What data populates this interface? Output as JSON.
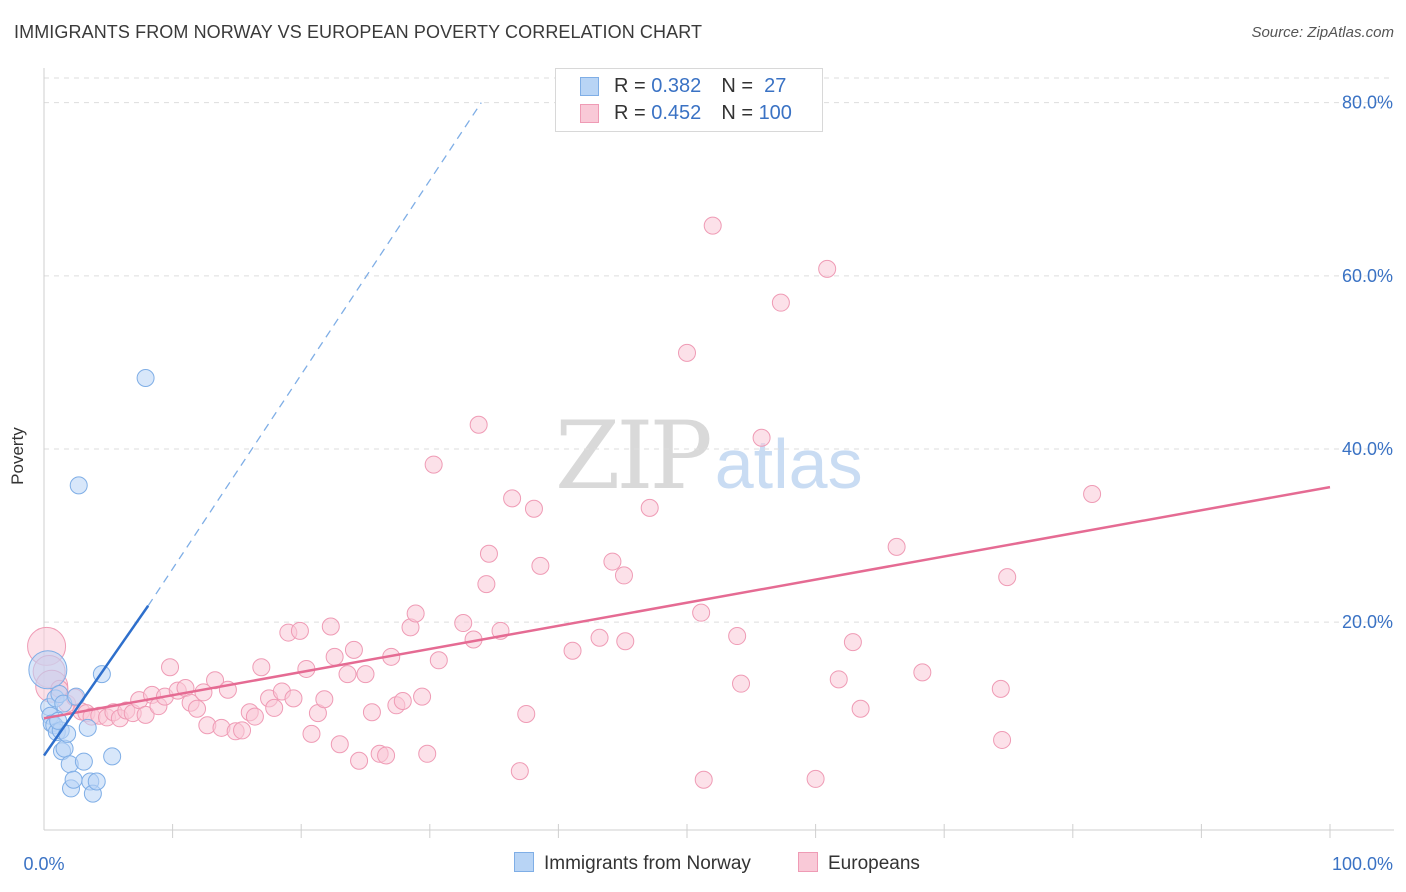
{
  "header": {
    "title": "IMMIGRANTS FROM NORWAY VS EUROPEAN POVERTY CORRELATION CHART",
    "source": "Source: ZipAtlas.com"
  },
  "watermark": {
    "zip": "ZIP",
    "atlas": "atlas"
  },
  "colors": {
    "blue_fill": "#b8d4f5",
    "blue_stroke": "#7faee6",
    "blue_line": "#2e6fcc",
    "pink_fill": "#f9c9d7",
    "pink_stroke": "#ef9bb5",
    "pink_line": "#e56b93",
    "axis_text": "#3a72c4",
    "grid": "#dddddd"
  },
  "legend": {
    "rows": [
      {
        "r_label": "R = ",
        "r_value": "0.382",
        "n_label": "N = ",
        "n_value": " 27"
      },
      {
        "r_label": "R = ",
        "r_value": "0.452",
        "n_label": "N = ",
        "n_value": "100"
      }
    ]
  },
  "bottom_legend": {
    "items": [
      {
        "label": "Immigrants from Norway"
      },
      {
        "label": "Europeans"
      }
    ]
  },
  "chart_data": {
    "type": "scatter",
    "title": "IMMIGRANTS FROM NORWAY VS EUROPEAN POVERTY CORRELATION CHART",
    "xlabel": "",
    "ylabel": "Poverty",
    "xlim": [
      0,
      100
    ],
    "ylim": [
      -4,
      84
    ],
    "x_tick_labels": [
      "0.0%",
      "100.0%"
    ],
    "y_ticks": [
      20,
      40,
      60,
      80
    ],
    "y_tick_labels": [
      "20.0%",
      "40.0%",
      "60.0%",
      "80.0%"
    ],
    "grid": true,
    "legend_position": "top-center",
    "series": [
      {
        "name": "Immigrants from Norway",
        "r": 0.382,
        "n": 27,
        "trend": {
          "x1": 0,
          "y1": 4.6,
          "x2": 8.1,
          "y2": 21.9,
          "dashed_to_x": 34.0,
          "dashed_to_y": 80.0
        },
        "points": [
          [
            0.3,
            14.5
          ],
          [
            0.4,
            10.2
          ],
          [
            0.5,
            9.2
          ],
          [
            0.6,
            8.3
          ],
          [
            0.8,
            8.1
          ],
          [
            0.9,
            11.2
          ],
          [
            1.0,
            7.3
          ],
          [
            1.2,
            11.7
          ],
          [
            1.3,
            7.5
          ],
          [
            1.4,
            5.1
          ],
          [
            1.5,
            10.6
          ],
          [
            1.6,
            5.4
          ],
          [
            1.8,
            7.1
          ],
          [
            2.0,
            3.6
          ],
          [
            2.1,
            0.8
          ],
          [
            2.3,
            1.8
          ],
          [
            2.5,
            11.4
          ],
          [
            2.7,
            35.8
          ],
          [
            3.1,
            3.9
          ],
          [
            3.4,
            7.8
          ],
          [
            3.6,
            1.6
          ],
          [
            3.8,
            0.2
          ],
          [
            4.1,
            1.6
          ],
          [
            4.5,
            14.0
          ],
          [
            5.3,
            4.5
          ],
          [
            7.9,
            48.2
          ],
          [
            1.1,
            8.6
          ]
        ]
      },
      {
        "name": "Europeans",
        "r": 0.452,
        "n": 100,
        "trend": {
          "x1": 0,
          "y1": 8.9,
          "x2": 100,
          "y2": 35.6
        },
        "points": [
          [
            0.2,
            17.2
          ],
          [
            0.4,
            14.3
          ],
          [
            0.6,
            12.6
          ],
          [
            1.2,
            12.3
          ],
          [
            1.8,
            10.6
          ],
          [
            2.4,
            11.3
          ],
          [
            2.9,
            9.7
          ],
          [
            3.3,
            9.5
          ],
          [
            3.7,
            9.1
          ],
          [
            4.3,
            9.2
          ],
          [
            4.9,
            9.0
          ],
          [
            5.4,
            9.6
          ],
          [
            5.9,
            8.9
          ],
          [
            6.4,
            9.8
          ],
          [
            6.9,
            9.5
          ],
          [
            7.4,
            11.0
          ],
          [
            7.9,
            9.3
          ],
          [
            8.4,
            11.6
          ],
          [
            8.9,
            10.3
          ],
          [
            9.4,
            11.4
          ],
          [
            9.8,
            14.8
          ],
          [
            10.4,
            12.1
          ],
          [
            11.0,
            12.4
          ],
          [
            11.4,
            10.7
          ],
          [
            11.9,
            10.0
          ],
          [
            12.4,
            11.9
          ],
          [
            12.7,
            8.1
          ],
          [
            13.3,
            13.3
          ],
          [
            13.8,
            7.8
          ],
          [
            14.3,
            12.2
          ],
          [
            14.9,
            7.4
          ],
          [
            15.4,
            7.5
          ],
          [
            16.0,
            9.6
          ],
          [
            16.4,
            9.1
          ],
          [
            16.9,
            14.8
          ],
          [
            17.5,
            11.2
          ],
          [
            17.9,
            10.1
          ],
          [
            18.5,
            12.0
          ],
          [
            19.0,
            18.8
          ],
          [
            19.4,
            11.2
          ],
          [
            19.9,
            19.0
          ],
          [
            20.4,
            14.6
          ],
          [
            20.8,
            7.1
          ],
          [
            21.3,
            9.5
          ],
          [
            21.8,
            11.1
          ],
          [
            22.3,
            19.5
          ],
          [
            22.6,
            16.0
          ],
          [
            23.0,
            5.9
          ],
          [
            23.6,
            14.0
          ],
          [
            24.1,
            16.8
          ],
          [
            24.5,
            4.0
          ],
          [
            25.0,
            14.0
          ],
          [
            25.5,
            9.6
          ],
          [
            26.1,
            4.8
          ],
          [
            26.6,
            4.6
          ],
          [
            27.0,
            16.0
          ],
          [
            27.4,
            10.4
          ],
          [
            27.9,
            10.9
          ],
          [
            28.5,
            19.4
          ],
          [
            28.9,
            21.0
          ],
          [
            29.4,
            11.4
          ],
          [
            29.8,
            4.8
          ],
          [
            30.3,
            38.2
          ],
          [
            30.7,
            15.6
          ],
          [
            32.6,
            19.9
          ],
          [
            33.4,
            18.0
          ],
          [
            33.8,
            42.8
          ],
          [
            34.4,
            24.4
          ],
          [
            34.6,
            27.9
          ],
          [
            35.5,
            19.0
          ],
          [
            36.4,
            34.3
          ],
          [
            37.0,
            2.8
          ],
          [
            37.5,
            9.4
          ],
          [
            38.1,
            33.1
          ],
          [
            38.6,
            26.5
          ],
          [
            41.1,
            16.7
          ],
          [
            43.2,
            18.2
          ],
          [
            44.2,
            27.0
          ],
          [
            45.1,
            25.4
          ],
          [
            45.2,
            17.8
          ],
          [
            47.1,
            33.2
          ],
          [
            50.0,
            51.1
          ],
          [
            51.1,
            21.1
          ],
          [
            51.3,
            1.8
          ],
          [
            52.0,
            65.8
          ],
          [
            53.9,
            18.4
          ],
          [
            54.2,
            12.9
          ],
          [
            55.8,
            41.3
          ],
          [
            57.3,
            56.9
          ],
          [
            60.0,
            1.9
          ],
          [
            60.9,
            60.8
          ],
          [
            61.8,
            13.4
          ],
          [
            62.9,
            17.7
          ],
          [
            63.5,
            10.0
          ],
          [
            66.3,
            28.7
          ],
          [
            68.3,
            14.2
          ],
          [
            74.4,
            12.3
          ],
          [
            74.9,
            25.2
          ],
          [
            74.5,
            6.4
          ],
          [
            81.5,
            34.8
          ]
        ]
      }
    ]
  }
}
